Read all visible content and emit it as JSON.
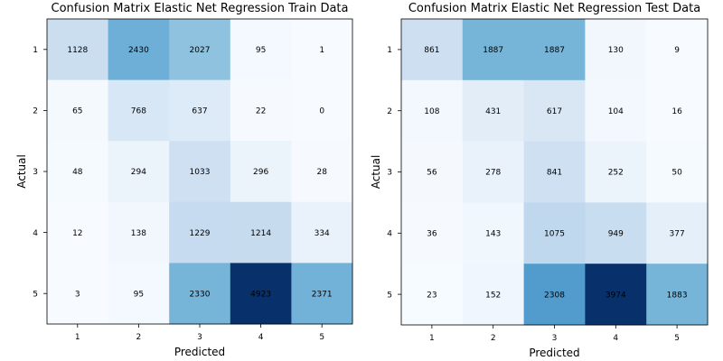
{
  "chart_data": [
    {
      "type": "heatmap",
      "title": "Confusion Matrix Elastic Net Regression Train Data",
      "xlabel": "Predicted",
      "ylabel": "Actual",
      "x_ticks": [
        "1",
        "2",
        "3",
        "4",
        "5"
      ],
      "y_ticks": [
        "1",
        "2",
        "3",
        "4",
        "5"
      ],
      "matrix": [
        [
          1128,
          2430,
          2027,
          95,
          1
        ],
        [
          65,
          768,
          637,
          22,
          0
        ],
        [
          48,
          294,
          1033,
          296,
          28
        ],
        [
          12,
          138,
          1229,
          1214,
          334
        ],
        [
          3,
          95,
          2330,
          4923,
          2371
        ]
      ],
      "colormap": "Blues"
    },
    {
      "type": "heatmap",
      "title": "Confusion Matrix Elastic Net Regression Test Data",
      "xlabel": "Predicted",
      "ylabel": "Actual",
      "x_ticks": [
        "1",
        "2",
        "3",
        "4",
        "5"
      ],
      "y_ticks": [
        "1",
        "2",
        "3",
        "4",
        "5"
      ],
      "matrix": [
        [
          861,
          1887,
          1887,
          130,
          9
        ],
        [
          108,
          431,
          617,
          104,
          16
        ],
        [
          56,
          278,
          841,
          252,
          50
        ],
        [
          36,
          143,
          1075,
          949,
          377
        ],
        [
          23,
          152,
          2308,
          3974,
          1883
        ]
      ],
      "colormap": "Blues"
    }
  ]
}
